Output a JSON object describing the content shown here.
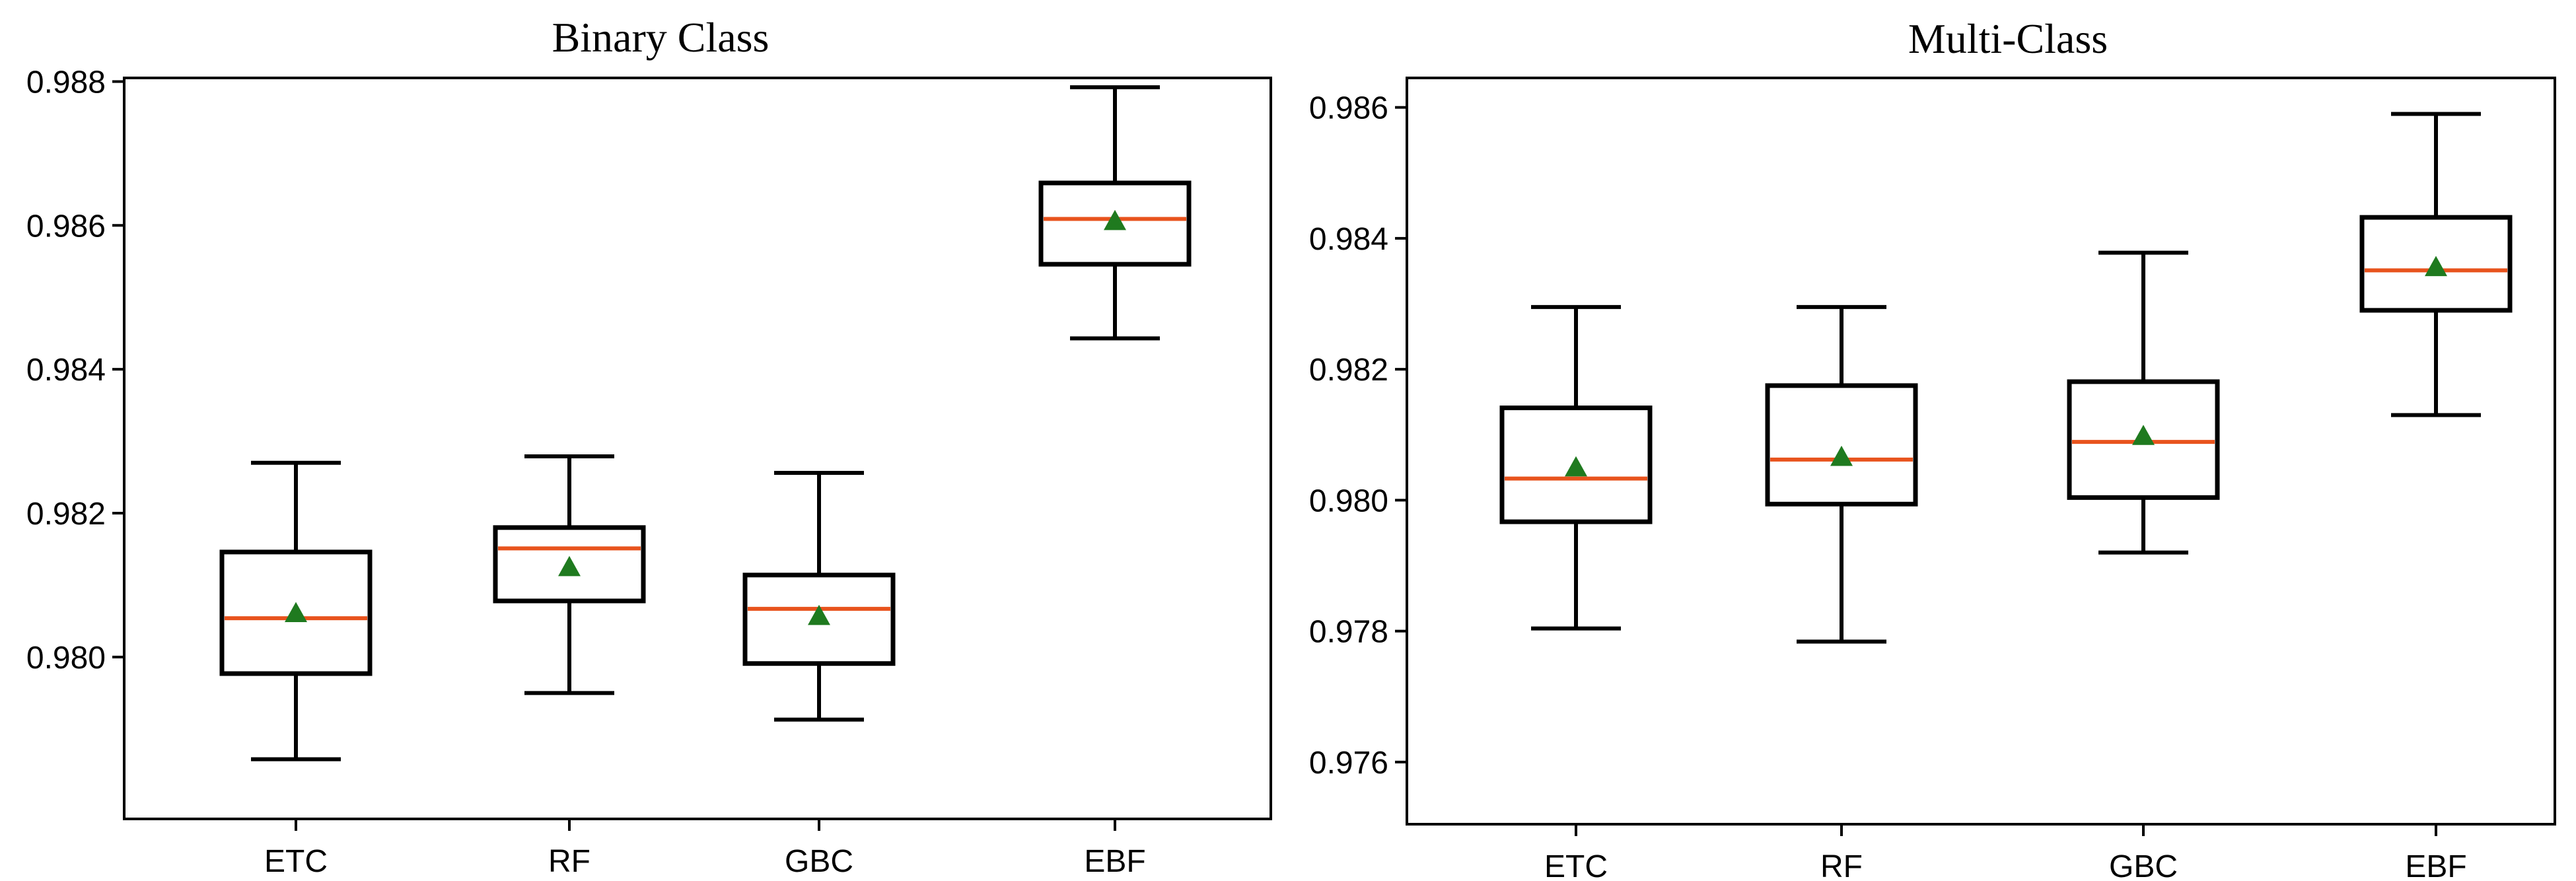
{
  "colors": {
    "median": "#e8531d",
    "mean": "#1f7a1f",
    "box": "#000000"
  },
  "chart_data": [
    {
      "type": "box",
      "title": "Binary Class",
      "categories": [
        "ETC",
        "RF",
        "GBC",
        "EBF"
      ],
      "ylim": [
        0.97775,
        0.98805
      ],
      "yticks": [
        "0.980",
        "0.982",
        "0.984",
        "0.986",
        "0.988"
      ],
      "grid": false,
      "boxes": [
        {
          "category": "ETC",
          "whisker_low": 0.97858,
          "q1": 0.97977,
          "median": 0.98054,
          "mean": 0.98061,
          "q3": 0.98146,
          "whisker_high": 0.9827
        },
        {
          "category": "RF",
          "whisker_low": 0.9795,
          "q1": 0.98078,
          "median": 0.98151,
          "mean": 0.98125,
          "q3": 0.9818,
          "whisker_high": 0.98279
        },
        {
          "category": "GBC",
          "whisker_low": 0.97913,
          "q1": 0.97991,
          "median": 0.98067,
          "mean": 0.98057,
          "q3": 0.98114,
          "whisker_high": 0.98256
        },
        {
          "category": "EBF",
          "whisker_low": 0.98443,
          "q1": 0.98546,
          "median": 0.98609,
          "mean": 0.98606,
          "q3": 0.98659,
          "whisker_high": 0.98792
        }
      ]
    },
    {
      "type": "box",
      "title": "Multi-Class",
      "categories": [
        "ETC",
        "RF",
        "GBC",
        "EBF"
      ],
      "ylim": [
        0.97505,
        0.98645
      ],
      "yticks": [
        "0.976",
        "0.978",
        "0.980",
        "0.982",
        "0.984",
        "0.986"
      ],
      "grid": false,
      "boxes": [
        {
          "category": "ETC",
          "whisker_low": 0.97804,
          "q1": 0.97967,
          "median": 0.98033,
          "mean": 0.9805,
          "q3": 0.98141,
          "whisker_high": 0.98295
        },
        {
          "category": "RF",
          "whisker_low": 0.97784,
          "q1": 0.97994,
          "median": 0.98062,
          "mean": 0.98066,
          "q3": 0.98175,
          "whisker_high": 0.98295
        },
        {
          "category": "GBC",
          "whisker_low": 0.9792,
          "q1": 0.98004,
          "median": 0.98089,
          "mean": 0.98098,
          "q3": 0.98181,
          "whisker_high": 0.98378
        },
        {
          "category": "EBF",
          "whisker_low": 0.9813,
          "q1": 0.9829,
          "median": 0.98351,
          "mean": 0.98356,
          "q3": 0.98432,
          "whisker_high": 0.9859
        }
      ]
    }
  ]
}
